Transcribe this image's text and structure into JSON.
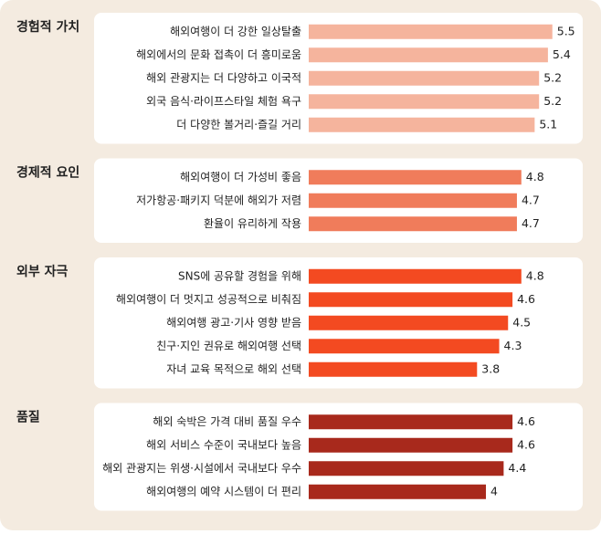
{
  "chart_data": [
    {
      "type": "bar",
      "title": "경험적 가치",
      "color": "#f5b49d",
      "categories": [
        "해외여행이 더 강한 일상탈출",
        "해외에서의 문화 접촉이 더 흥미로움",
        "해외 관광지는 더 다양하고 이국적",
        "외국 음식·라이프스타일 체험 욕구",
        "더 다양한 볼거리·즐길 거리"
      ],
      "values": [
        5.5,
        5.4,
        5.2,
        5.2,
        5.1
      ]
    },
    {
      "type": "bar",
      "title": "경제적 요인",
      "color": "#f07c5b",
      "categories": [
        "해외여행이 더 가성비 좋음",
        "저가항공·패키지 덕분에 해외가 저렴",
        "환율이 유리하게 작용"
      ],
      "values": [
        4.8,
        4.7,
        4.7
      ]
    },
    {
      "type": "bar",
      "title": "외부 자극",
      "color": "#f34a21",
      "categories": [
        "SNS에 공유할 경험을 위해",
        "해외여행이 더 멋지고 성공적으로 비춰짐",
        "해외여행 광고·기사 영향 받음",
        "친구·지인 권유로 해외여행 선택",
        "자녀 교육 목적으로 해외 선택"
      ],
      "values": [
        4.8,
        4.6,
        4.5,
        4.3,
        3.8
      ]
    },
    {
      "type": "bar",
      "title": "품질",
      "color": "#a8291c",
      "categories": [
        "해외 숙박은 가격 대비 품질 우수",
        "해외 서비스 수준이 국내보다 높음",
        "해외 관광지는 위생·시설에서 국내보다 우수",
        "해외여행의 예약 시스템이 더 편리"
      ],
      "values": [
        4.6,
        4.6,
        4.4,
        4
      ]
    }
  ]
}
